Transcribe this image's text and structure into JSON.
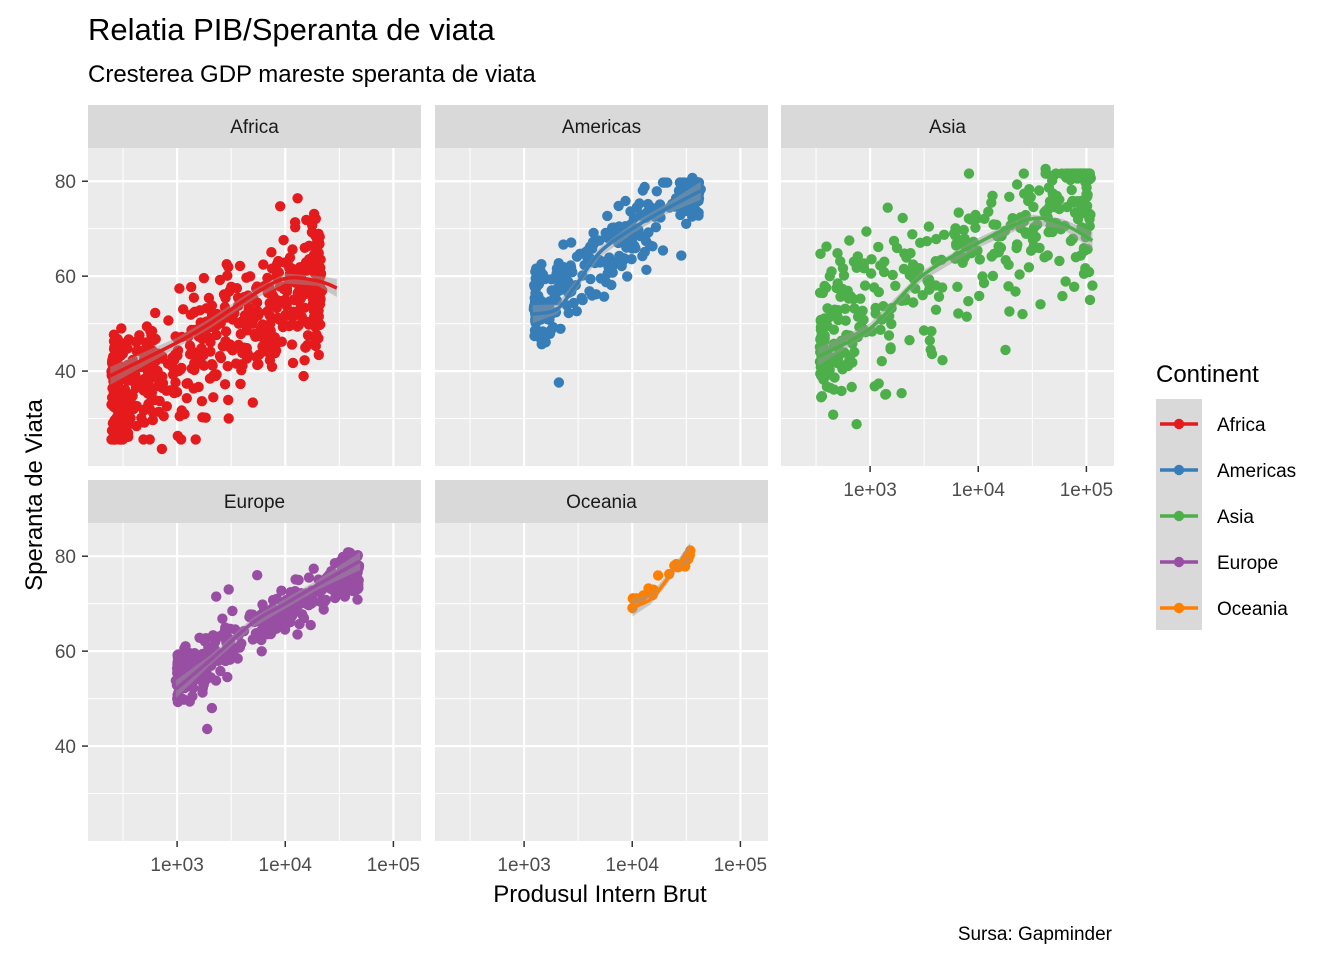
{
  "chart_data": {
    "type": "scatter",
    "title": "Relatia PIB/Speranta de viata",
    "subtitle": "Cresterea GDP mareste speranta de viata",
    "xlabel": "Produsul Intern Brut",
    "ylabel": "Speranta de Viata",
    "caption": "Sursa: Gapminder",
    "x_scale": "log10",
    "xlim": [
      150,
      180000
    ],
    "ylim": [
      20,
      87
    ],
    "x_ticks": [
      1000,
      10000,
      100000
    ],
    "x_tick_labels": [
      "1e+03",
      "1e+04",
      "1e+05"
    ],
    "y_ticks": [
      40,
      60,
      80
    ],
    "y_tick_labels": [
      "40",
      "60",
      "80"
    ],
    "grid": true,
    "legend": {
      "title": "Continent",
      "position": "right",
      "entries": [
        "Africa",
        "Americas",
        "Asia",
        "Europe",
        "Oceania"
      ]
    },
    "facets": [
      {
        "name": "Africa",
        "color": "#e41a1c",
        "gdp_range": [
          241,
          21951
        ],
        "life_range": [
          23.6,
          76.4
        ],
        "cloud": {
          "slope": 12,
          "intercept": 6,
          "sd": 6.5,
          "count": 600
        },
        "smooth": [
          [
            241,
            39
          ],
          [
            1000,
            46
          ],
          [
            2000,
            50
          ],
          [
            5000,
            56
          ],
          [
            10000,
            59.5
          ],
          [
            20000,
            59
          ],
          [
            30000,
            57.5
          ]
        ],
        "points": [
          [
            263,
            45
          ],
          [
            724,
            23.6
          ],
          [
            3000,
            30
          ],
          [
            13000,
            76.4
          ],
          [
            21951,
            57
          ],
          [
            300,
            36
          ]
        ]
      },
      {
        "name": "Americas",
        "color": "#377eb8",
        "gdp_range": [
          1202,
          42952
        ],
        "life_range": [
          37.6,
          80.7
        ],
        "cloud": {
          "slope": 18,
          "intercept": -3,
          "sd": 4.5,
          "count": 300
        },
        "smooth": [
          [
            1202,
            52
          ],
          [
            2000,
            53
          ],
          [
            3000,
            58
          ],
          [
            5000,
            65
          ],
          [
            10000,
            70
          ],
          [
            20000,
            74
          ],
          [
            42952,
            78
          ]
        ],
        "points": [
          [
            1400,
            61
          ],
          [
            2100,
            37.6
          ],
          [
            36000,
            80.7
          ],
          [
            42952,
            78.3
          ],
          [
            1800,
            57
          ]
        ]
      },
      {
        "name": "Asia",
        "color": "#4daf4a",
        "gdp_range": [
          331,
          113523
        ],
        "life_range": [
          28.8,
          82.6
        ],
        "cloud": {
          "slope": 12,
          "intercept": 17,
          "sd": 7.5,
          "count": 396
        },
        "smooth": [
          [
            331,
            43
          ],
          [
            1000,
            49
          ],
          [
            3000,
            60
          ],
          [
            10000,
            67
          ],
          [
            30000,
            72
          ],
          [
            60000,
            71
          ],
          [
            113523,
            67.5
          ]
        ],
        "points": [
          [
            750,
            28.8
          ],
          [
            113523,
            58
          ],
          [
            108000,
            55
          ],
          [
            95000,
            60.5
          ],
          [
            42000,
            82.6
          ],
          [
            80000,
            64
          ]
        ]
      },
      {
        "name": "Europe",
        "color": "#984ea3",
        "gdp_range": [
          974,
          49357
        ],
        "life_range": [
          43.6,
          81.8
        ],
        "cloud": {
          "slope": 14,
          "intercept": 12,
          "sd": 2.8,
          "count": 360
        },
        "smooth": [
          [
            974,
            52
          ],
          [
            2000,
            58
          ],
          [
            5000,
            66
          ],
          [
            10000,
            70
          ],
          [
            20000,
            74
          ],
          [
            49357,
            79
          ]
        ],
        "points": [
          [
            974,
            53.8
          ],
          [
            1900,
            43.6
          ],
          [
            2100,
            48
          ],
          [
            2300,
            71.5
          ],
          [
            3000,
            73
          ],
          [
            5500,
            76
          ]
        ]
      },
      {
        "name": "Oceania",
        "color": "#ff7f00",
        "gdp_range": [
          10040,
          34435
        ],
        "life_range": [
          69.1,
          81.2
        ],
        "cloud": {
          "slope": 22,
          "intercept": -19,
          "sd": 0.8,
          "count": 24
        },
        "smooth": [
          [
            10040,
            69.2
          ],
          [
            15000,
            71
          ],
          [
            20000,
            74.5
          ],
          [
            27000,
            78.5
          ],
          [
            34435,
            81
          ]
        ],
        "points": [
          [
            10040,
            69.1
          ],
          [
            34435,
            81.2
          ]
        ]
      }
    ]
  }
}
